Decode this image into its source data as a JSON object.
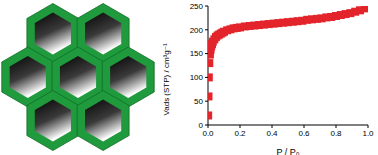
{
  "chart_data": {
    "type": "scatter",
    "x_label": "P / P₀",
    "y_label": "Vads (STP) / cm³g⁻¹",
    "x": [
      0.001,
      0.003,
      0.005,
      0.008,
      0.012,
      0.016,
      0.02,
      0.025,
      0.03,
      0.04,
      0.05,
      0.06,
      0.07,
      0.08,
      0.09,
      0.1,
      0.12,
      0.14,
      0.16,
      0.18,
      0.2,
      0.23,
      0.26,
      0.29,
      0.32,
      0.35,
      0.38,
      0.41,
      0.44,
      0.47,
      0.5,
      0.53,
      0.56,
      0.59,
      0.62,
      0.65,
      0.68,
      0.71,
      0.74,
      0.77,
      0.8,
      0.83,
      0.86,
      0.89,
      0.92,
      0.95,
      0.98
    ],
    "values": [
      20,
      60,
      100,
      130,
      148,
      158,
      165,
      170,
      175,
      180,
      185,
      188,
      190,
      192,
      194,
      196,
      199,
      201,
      203,
      204,
      205,
      207,
      208,
      209,
      210,
      211,
      212,
      213,
      214,
      215,
      216,
      217,
      218,
      219,
      221,
      222,
      223,
      224,
      226,
      227,
      229,
      231,
      233,
      235,
      238,
      241,
      245
    ],
    "color": "#e3242b",
    "marker": "square",
    "xlim": [
      0,
      1.0
    ],
    "xticks": [
      {
        "value": 0,
        "label": "0.0"
      },
      0.2,
      0.4,
      0.6,
      0.8,
      {
        "value": 1,
        "label": "1.0"
      }
    ],
    "ylim": [
      0,
      250
    ],
    "yticks": [
      0,
      50,
      100,
      150,
      200,
      250
    ],
    "grid": false
  }
}
